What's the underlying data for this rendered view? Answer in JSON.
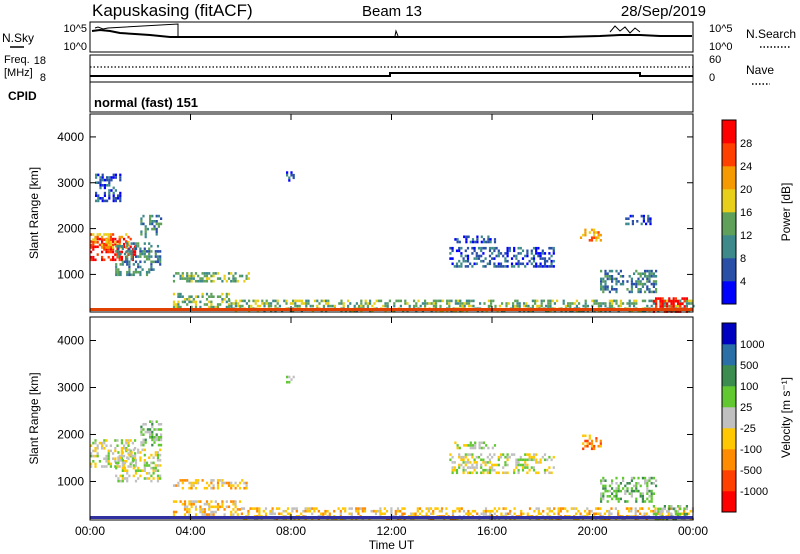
{
  "header": {
    "station": "Kapuskasing (fitACF)",
    "beam": "Beam 13",
    "date": "28/Sep/2019"
  },
  "top_panels": {
    "nsky_label": "N.Sky",
    "nsearch_label": "N.Search",
    "noise_ticks_left": [
      "10^5",
      "10^0"
    ],
    "noise_ticks_right": [
      "10^5",
      "10^0"
    ],
    "freq_label": "Freq.",
    "freq_unit": "[MHz]",
    "freq_ticks": [
      "18",
      "8"
    ],
    "nave_label": "Nave",
    "nave_ticks": [
      "60",
      "0"
    ],
    "cpid_label": "CPID",
    "cpid_value": "normal (fast) 151"
  },
  "chart_data": [
    {
      "type": "heatmap",
      "title": "",
      "ylabel": "Slant Range [km]",
      "xlabel": "",
      "x_ticks": [
        "00:00",
        "04:00",
        "08:00",
        "12:00",
        "16:00",
        "20:00",
        "00:00"
      ],
      "xlim": [
        0,
        24
      ],
      "ylim": [
        180,
        4500
      ],
      "y_ticks": [
        "1000",
        "2000",
        "3000",
        "4000"
      ],
      "colorbar": {
        "label": "Power [dB]",
        "ticks": [
          "4",
          "8",
          "12",
          "16",
          "20",
          "24",
          "28"
        ],
        "colors": [
          "#0000ff",
          "#2a4fa6",
          "#3e8a8a",
          "#5fa05a",
          "#e8cf1a",
          "#f59a00",
          "#ff4000",
          "#ff0000"
        ]
      },
      "echo_regions": [
        {
          "t": [
            0.0,
            1.8
          ],
          "range": [
            1300,
            1800
          ],
          "level": 7
        },
        {
          "t": [
            0.0,
            1.5
          ],
          "range": [
            1600,
            1900
          ],
          "level": 5
        },
        {
          "t": [
            1.0,
            2.8
          ],
          "range": [
            1000,
            1700
          ],
          "level": 2
        },
        {
          "t": [
            2.0,
            2.8
          ],
          "range": [
            1800,
            2300
          ],
          "level": 2
        },
        {
          "t": [
            0.2,
            1.2
          ],
          "range": [
            2600,
            3200
          ],
          "level": 1
        },
        {
          "t": [
            3.3,
            6.3
          ],
          "range": [
            850,
            1050
          ],
          "level": 3
        },
        {
          "t": [
            3.3,
            5.5
          ],
          "range": [
            250,
            600
          ],
          "level": 3
        },
        {
          "t": [
            5.5,
            24.0
          ],
          "range": [
            200,
            450
          ],
          "level": 3
        },
        {
          "t": [
            7.8,
            8.1
          ],
          "range": [
            3050,
            3250
          ],
          "level": 1
        },
        {
          "t": [
            14.3,
            18.5
          ],
          "range": [
            1200,
            1600
          ],
          "level": 1
        },
        {
          "t": [
            14.5,
            16.2
          ],
          "range": [
            1700,
            1850
          ],
          "level": 1
        },
        {
          "t": [
            19.5,
            20.3
          ],
          "range": [
            1700,
            2000
          ],
          "level": 5
        },
        {
          "t": [
            20.3,
            22.5
          ],
          "range": [
            600,
            1100
          ],
          "level": 2
        },
        {
          "t": [
            21.3,
            22.3
          ],
          "range": [
            2100,
            2300
          ],
          "level": 1
        },
        {
          "t": [
            22.4,
            23.8
          ],
          "range": [
            200,
            500
          ],
          "level": 7
        }
      ]
    },
    {
      "type": "heatmap",
      "title": "",
      "ylabel": "Slant Range [km]",
      "xlabel": "Time UT",
      "x_ticks": [
        "00:00",
        "04:00",
        "08:00",
        "12:00",
        "16:00",
        "20:00",
        "00:00"
      ],
      "xlim": [
        0,
        24
      ],
      "ylim": [
        180,
        4500
      ],
      "y_ticks": [
        "1000",
        "2000",
        "3000",
        "4000"
      ],
      "colorbar": {
        "label": "Velocity [m s⁻¹]",
        "ticks": [
          "1000",
          "500",
          "100",
          "25",
          "-25",
          "-100",
          "-500",
          "-1000"
        ],
        "colors": [
          "#0000c0",
          "#2a6fa6",
          "#3c8c50",
          "#62c832",
          "#c0c0c0",
          "#ffc800",
          "#ff8c00",
          "#ff4000",
          "#ff0000"
        ]
      },
      "echo_regions": [
        {
          "t": [
            0.0,
            1.8
          ],
          "range": [
            1300,
            1900
          ],
          "level": 4
        },
        {
          "t": [
            1.0,
            2.8
          ],
          "range": [
            1000,
            1700
          ],
          "level": 4
        },
        {
          "t": [
            2.0,
            2.8
          ],
          "range": [
            1800,
            2300
          ],
          "level": 3
        },
        {
          "t": [
            3.3,
            6.3
          ],
          "range": [
            850,
            1050
          ],
          "level": 5
        },
        {
          "t": [
            3.3,
            6.0
          ],
          "range": [
            250,
            600
          ],
          "level": 5
        },
        {
          "t": [
            6.0,
            24.0
          ],
          "range": [
            200,
            450
          ],
          "level": 5
        },
        {
          "t": [
            7.8,
            8.1
          ],
          "range": [
            3050,
            3250
          ],
          "level": 4
        },
        {
          "t": [
            14.3,
            18.5
          ],
          "range": [
            1200,
            1600
          ],
          "level": 4
        },
        {
          "t": [
            14.5,
            16.2
          ],
          "range": [
            1700,
            1850
          ],
          "level": 4
        },
        {
          "t": [
            19.5,
            20.3
          ],
          "range": [
            1700,
            2000
          ],
          "level": 6
        },
        {
          "t": [
            20.3,
            22.5
          ],
          "range": [
            600,
            1100
          ],
          "level": 3
        },
        {
          "t": [
            22.4,
            23.8
          ],
          "range": [
            200,
            500
          ],
          "level": 3
        }
      ]
    }
  ]
}
